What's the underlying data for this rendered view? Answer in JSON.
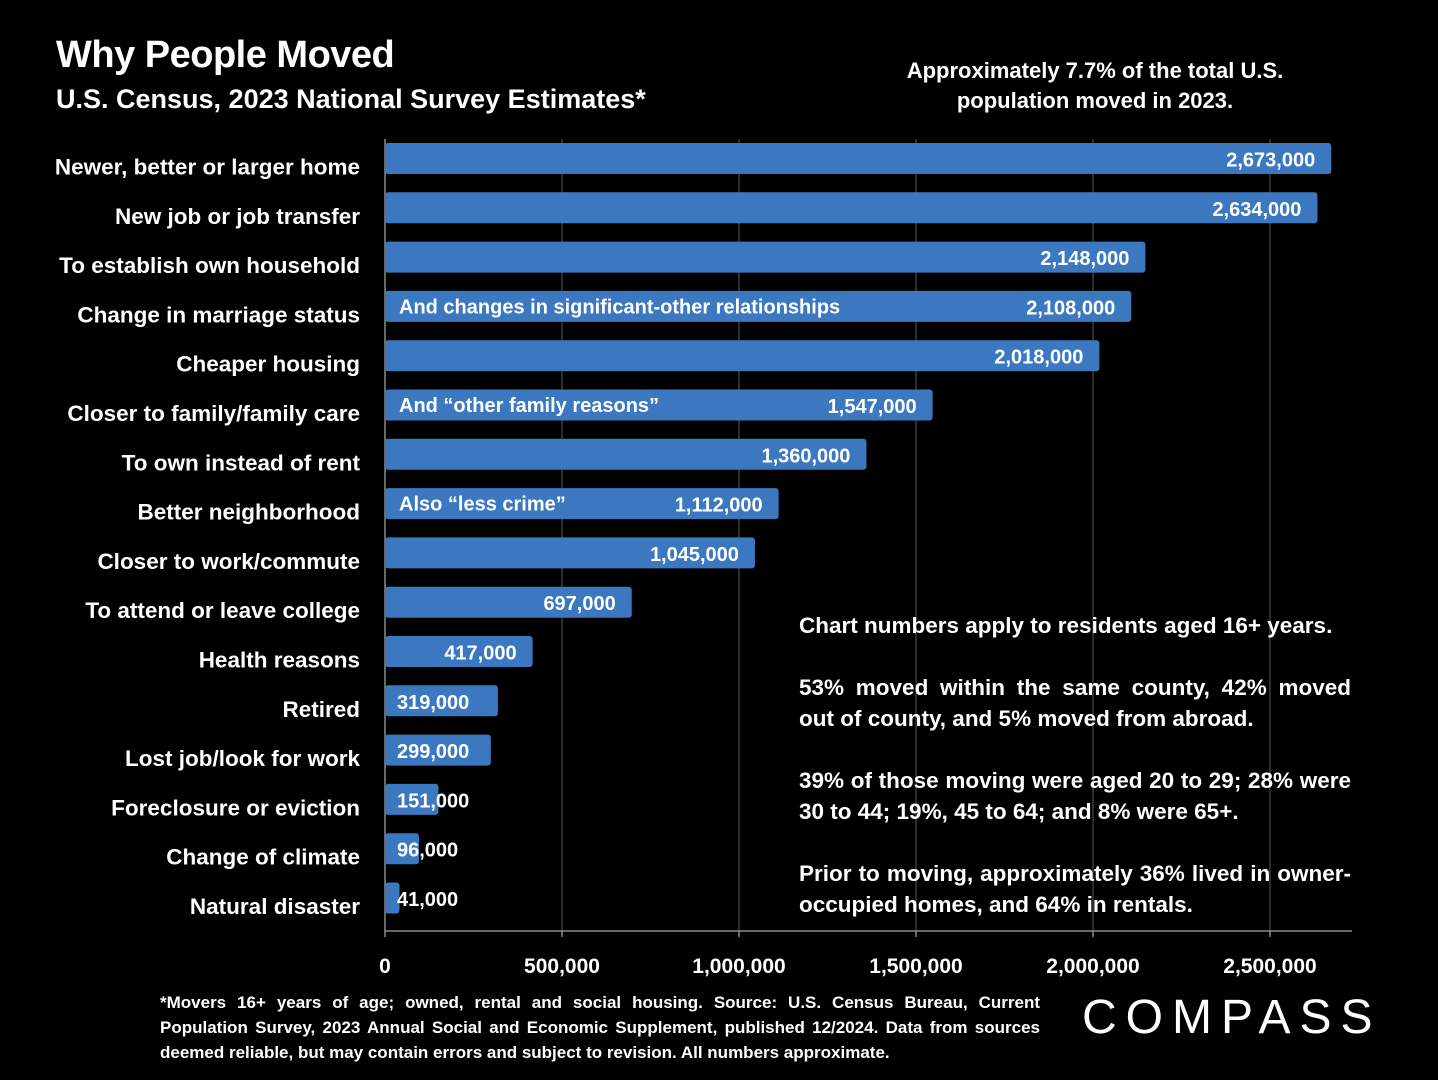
{
  "header": {
    "title": "Why People Moved",
    "subtitle": "U.S. Census, 2023 National Survey Estimates*",
    "top_note": "Approximately 7.7% of the total U.S. population moved in 2023."
  },
  "notes": [
    "Chart numbers apply to residents aged 16+ years.",
    "53% moved within the same county, 42% moved out of county, and 5% moved from abroad.",
    "39% of those moving were aged 20 to 29; 28% were 30 to 44; 19%, 45 to 64; and 8% were 65+.",
    "Prior to moving, approximately 36% lived in owner-occupied homes, and 64% in rentals."
  ],
  "footnote": "*Movers 16+ years of age; owned, rental and social housing. Source: U.S. Census Bureau, Current Population Survey, 2023 Annual Social and Economic Supplement, published 12/2024. Data from sources deemed reliable, but may contain errors and subject to revision. All numbers approximate.",
  "brand": {
    "logo_text": "COMPASS"
  },
  "colors": {
    "bar": "#3b78c0",
    "background": "#000000",
    "text": "#ffffff",
    "grid": "#5a5a5a"
  },
  "chart_data": {
    "type": "bar",
    "orientation": "horizontal",
    "categories": [
      "Newer, better or larger home",
      "New job or job transfer",
      "To establish own household",
      "Change in marriage status",
      "Cheaper housing",
      "Closer to family/family care",
      "To own instead of rent",
      "Better neighborhood",
      "Closer to work/commute",
      "To attend or leave college",
      "Health reasons",
      "Retired",
      "Lost job/look for work",
      "Foreclosure or eviction",
      "Change of climate",
      "Natural disaster"
    ],
    "values": [
      2673000,
      2634000,
      2148000,
      2108000,
      2018000,
      1547000,
      1360000,
      1112000,
      1045000,
      697000,
      417000,
      319000,
      299000,
      151000,
      96000,
      41000
    ],
    "value_labels": [
      "2,673,000",
      "2,634,000",
      "2,148,000",
      "2,108,000",
      "2,018,000",
      "1,547,000",
      "1,360,000",
      "1,112,000",
      "1,045,000",
      "697,000",
      "417,000",
      "319,000",
      "299,000",
      "151,000",
      "96,000",
      "41,000"
    ],
    "bar_annotations": [
      "",
      "",
      "",
      "And changes in significant-other relationships",
      "",
      "And “other family reasons”",
      "",
      "Also “less crime”",
      "",
      "",
      "",
      "",
      "",
      "",
      "",
      ""
    ],
    "x_ticks": [
      0,
      500000,
      1000000,
      1500000,
      2000000,
      2500000
    ],
    "x_tick_labels": [
      "0",
      "500,000",
      "1,000,000",
      "1,500,000",
      "2,000,000",
      "2,500,000"
    ],
    "xlim": [
      0,
      2750000
    ],
    "grid": "vertical",
    "title": "Why People Moved",
    "xlabel": "",
    "ylabel": ""
  }
}
